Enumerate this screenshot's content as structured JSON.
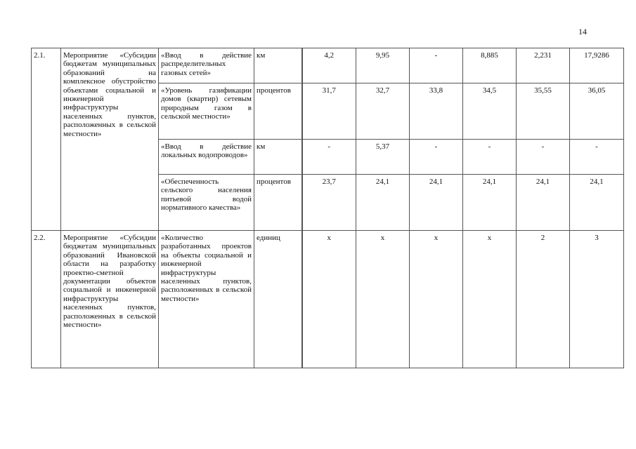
{
  "page_number": "14",
  "rows": [
    {
      "number": "2.1.",
      "measure": "Мероприятие «Субсидии бюджетам муниципальных образований на комплексное обустройство объектами социальной и инженерной инфраструктуры населенных пунктов, расположенных в сельской местности»",
      "indicators": [
        {
          "name": "«Ввод в действие распределительных газовых сетей»",
          "unit": "км",
          "values": [
            "4,2",
            "9,95",
            "-",
            "8,885",
            "2,231",
            "17,9286"
          ]
        },
        {
          "name": "«Уровень газификации домов (квартир) сетевым природным газом в сельской местности»",
          "unit": "процентов",
          "values": [
            "31,7",
            "32,7",
            "33,8",
            "34,5",
            "35,55",
            "36,05"
          ]
        },
        {
          "name": "«Ввод в действие локальных водопроводов»",
          "unit": "км",
          "values": [
            "-",
            "5,37",
            "-",
            "-",
            "-",
            "-"
          ]
        },
        {
          "name": "«Обеспеченность сельского населения питьевой водой нормативного качества»",
          "unit": "процентов",
          "values": [
            "23,7",
            "24,1",
            "24,1",
            "24,1",
            "24,1",
            "24,1"
          ]
        }
      ]
    },
    {
      "number": "2.2.",
      "measure": "Мероприятие «Субсидии бюджетам муниципальных образований Ивановской области на разработку проектно-сметной документации объектов социальной и инженерной инфраструктуры населенных пунктов, расположенных в сельской местности»",
      "indicators": [
        {
          "name": "«Количество разработанных проектов на объекты социальной и инженерной инфраструктуры населенных пунктов, расположенных в сельской местности»",
          "unit": "единиц",
          "values": [
            "x",
            "x",
            "x",
            "x",
            "2",
            "3"
          ]
        }
      ]
    }
  ]
}
